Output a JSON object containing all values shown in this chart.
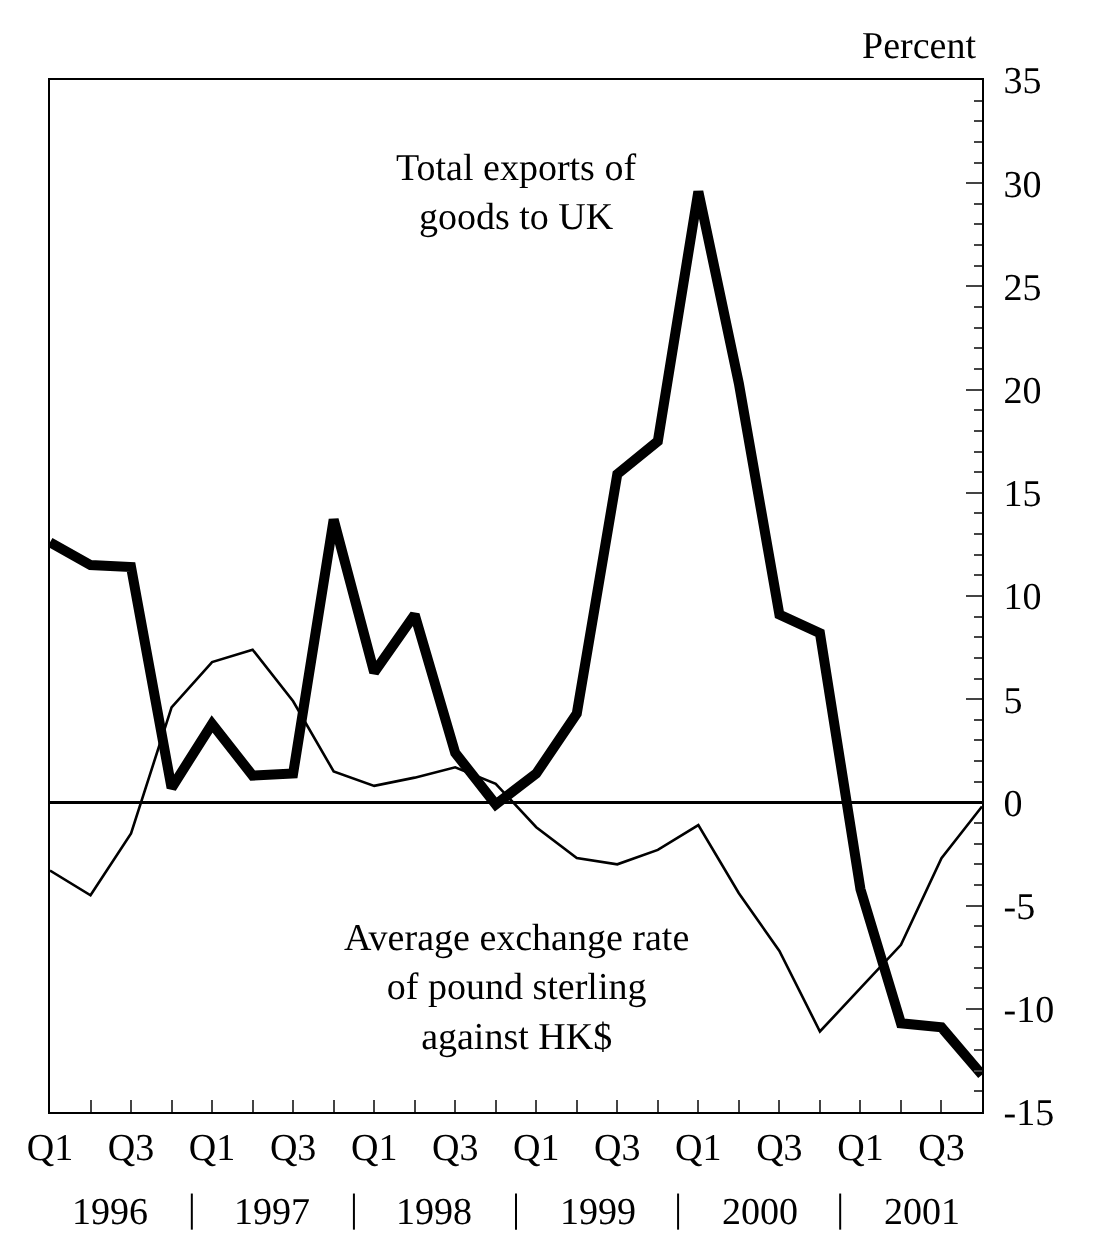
{
  "chart_data": {
    "type": "line",
    "ylabel": "Percent",
    "categories": [
      "Q1",
      null,
      "Q3",
      null,
      "Q1",
      null,
      "Q3",
      null,
      "Q1",
      null,
      "Q3",
      null,
      "Q1",
      null,
      "Q3",
      null,
      "Q1",
      null,
      "Q3",
      null,
      "Q1",
      null,
      "Q3",
      null
    ],
    "series": [
      {
        "name": "Total exports of goods to UK",
        "color": "#000000",
        "values": [
          12.6,
          11.5,
          11.4,
          0.7,
          3.8,
          1.3,
          1.4,
          13.7,
          6.3,
          9.1,
          2.4,
          -0.1,
          1.4,
          4.3,
          15.9,
          17.5,
          29.6,
          20.3,
          9.1,
          8.2,
          -4.2,
          -10.7,
          -10.9,
          -13.2
        ]
      },
      {
        "name": "Average exchange rate of pound sterling against HK$",
        "color": "#000000",
        "values": [
          -3.3,
          -4.5,
          -1.5,
          4.6,
          6.8,
          7.4,
          4.9,
          1.5,
          0.8,
          1.2,
          1.7,
          0.9,
          -1.2,
          -2.7,
          -3.0,
          -2.3,
          -1.1,
          -4.4,
          -7.2,
          -11.1,
          -9.0,
          -6.9,
          -2.7,
          -0.2
        ]
      }
    ],
    "annotations": [
      "1996",
      "1997",
      "1998",
      "1999",
      "2000",
      "2001"
    ],
    "ylim": [
      -15,
      35
    ],
    "yticks": [
      -15,
      -10,
      -5,
      0,
      5,
      10,
      15,
      20,
      25,
      30,
      35
    ],
    "ref_lines": [
      {
        "axis": "y",
        "value": 0,
        "color": "#000000"
      }
    ],
    "grid": false,
    "legend": false
  }
}
